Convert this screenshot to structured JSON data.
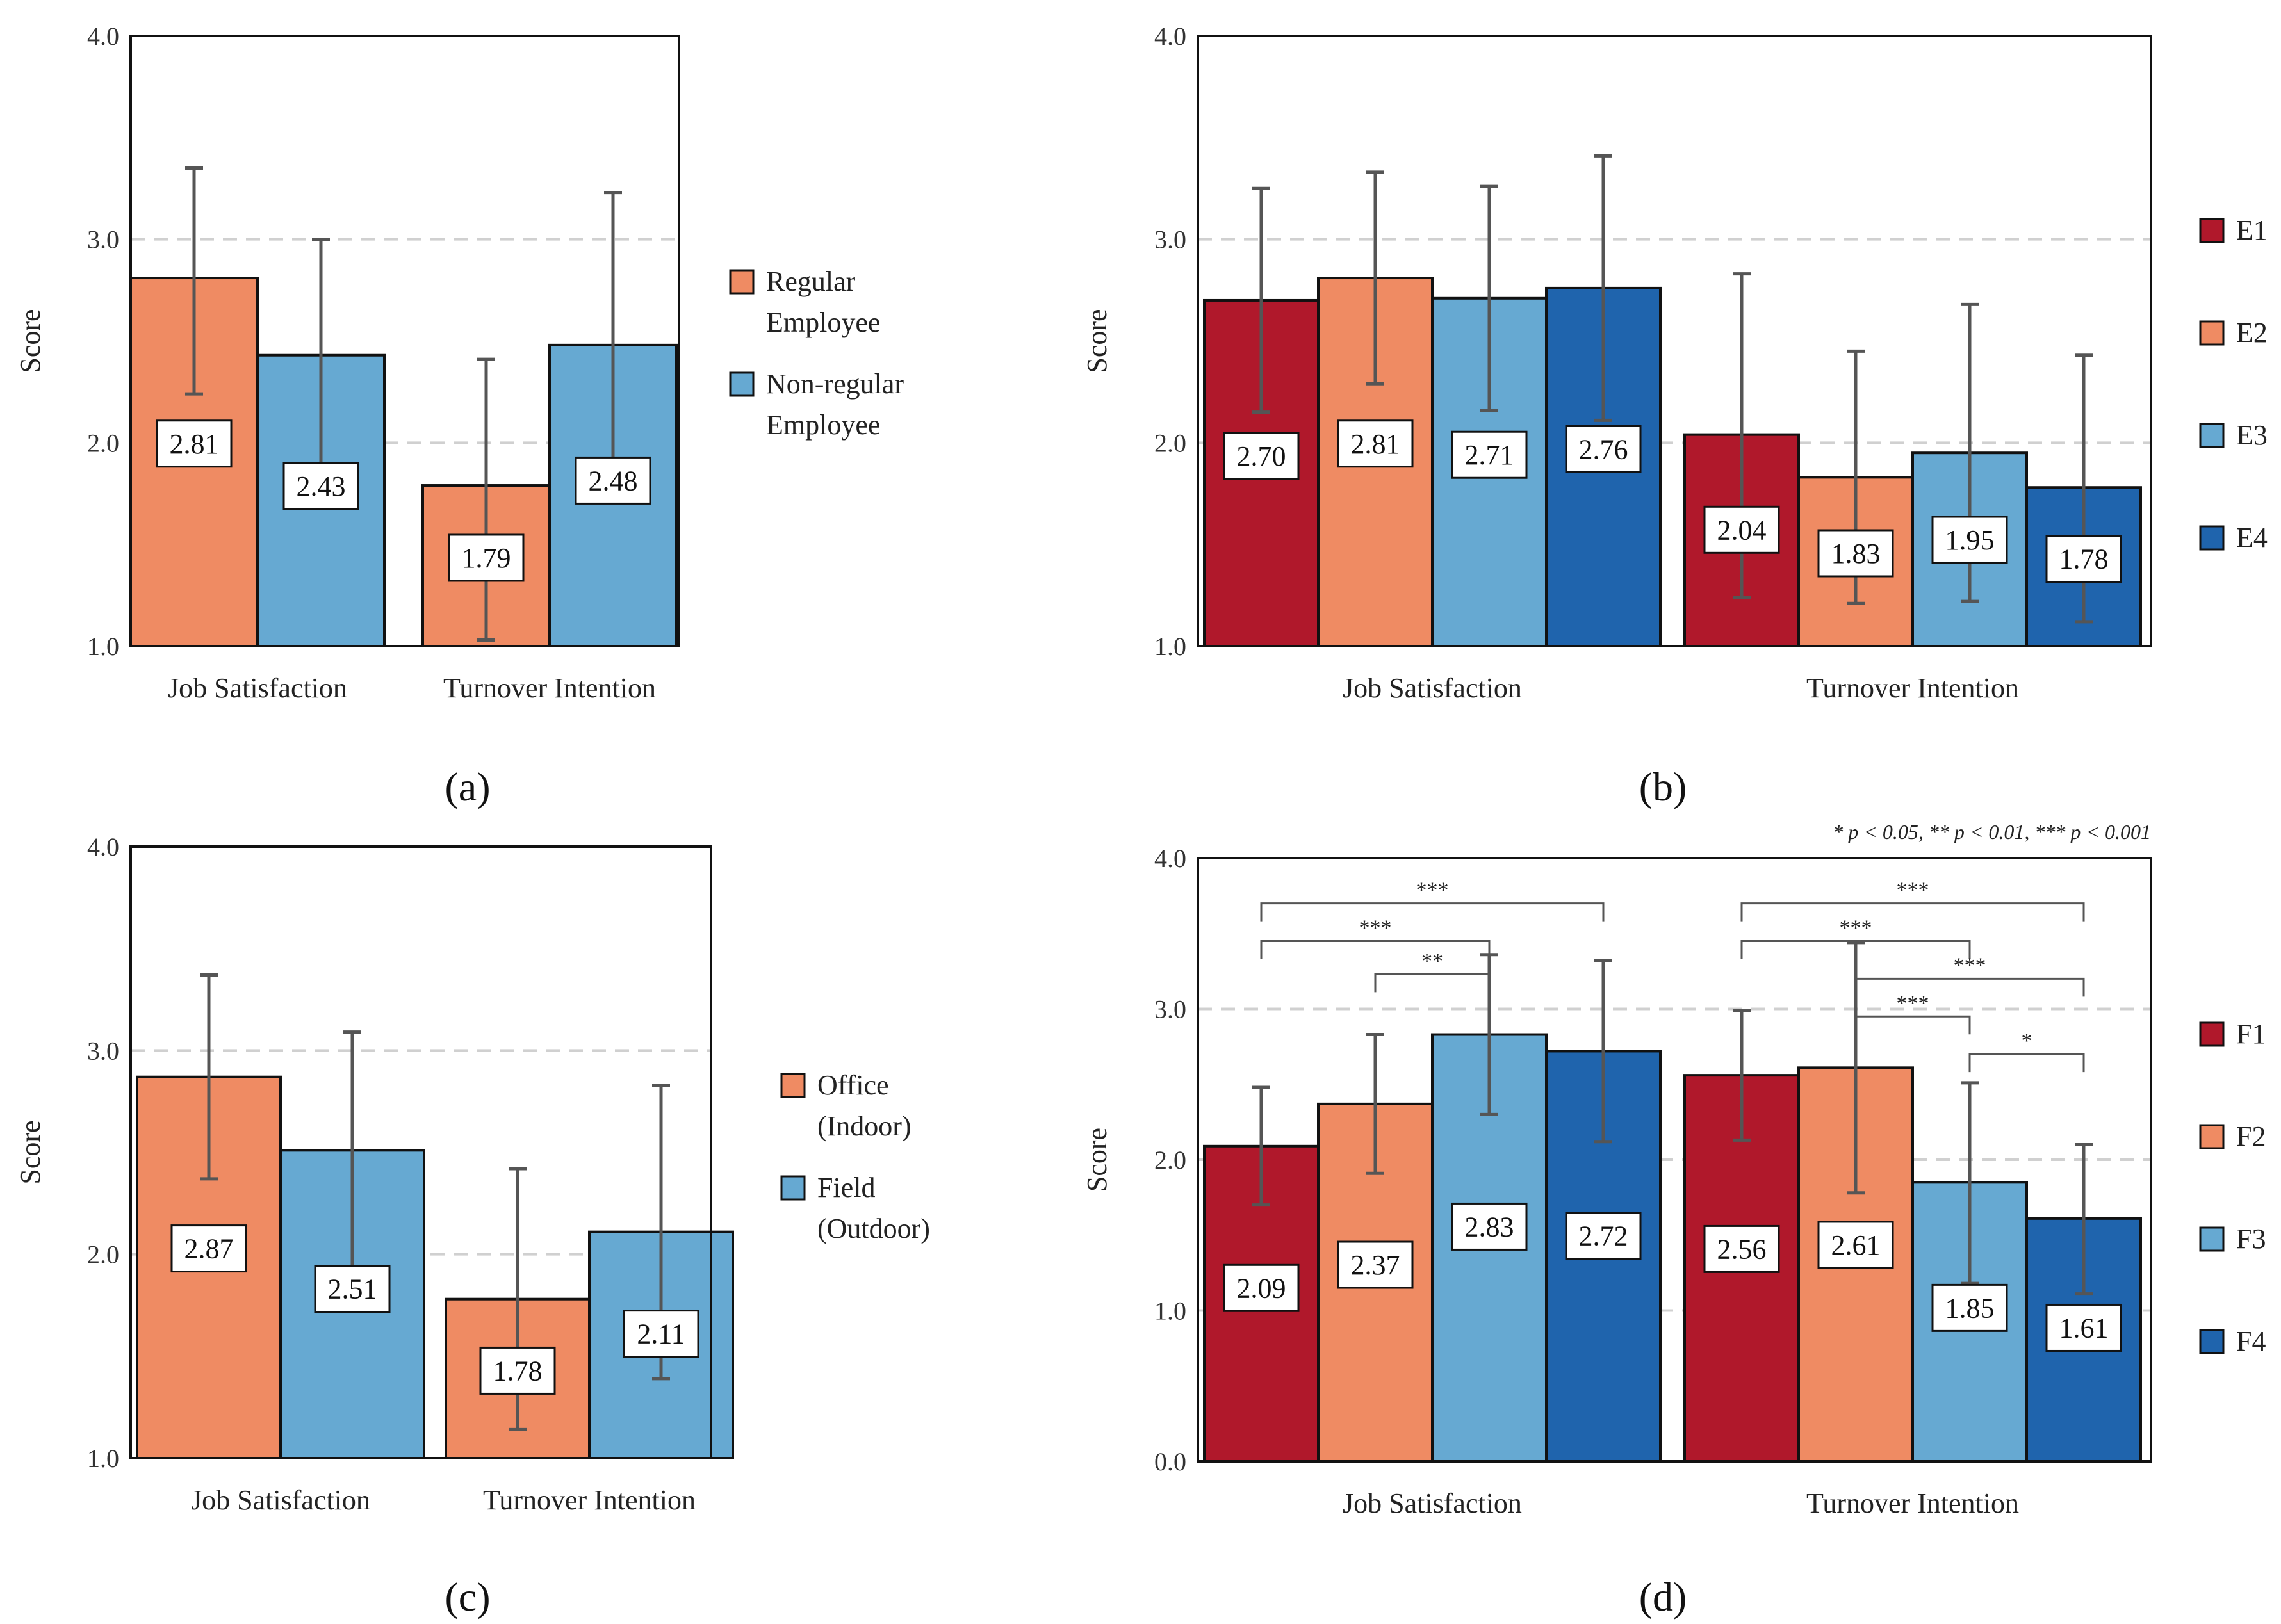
{
  "colors": {
    "red": "#B0182B",
    "orange": "#EF8B63",
    "lightblue": "#66A9D2",
    "darkblue": "#1F64AD",
    "grid": "#D0D0D0",
    "errorbar": "#555555"
  },
  "chart_data": [
    {
      "id": "a",
      "panel_label": "(a)",
      "type": "bar",
      "ylabel": "Score",
      "ylim": [
        1.0,
        4.0
      ],
      "yticks": [
        "1.0",
        "2.0",
        "3.0",
        "4.0"
      ],
      "ytick_values": [
        1.0,
        2.0,
        3.0,
        4.0
      ],
      "grid": true,
      "categories": [
        "Job Satisfaction",
        "Turnover Intention"
      ],
      "series": [
        {
          "name": "Regular Employee",
          "legend_lines": [
            "Regular",
            "Employee"
          ],
          "color": "#EF8B63",
          "values": [
            2.81,
            1.79
          ],
          "labels": [
            "2.81",
            "1.79"
          ],
          "err_low": [
            2.24,
            1.03
          ],
          "err_high": [
            3.35,
            2.41
          ]
        },
        {
          "name": "Non-regular Employee",
          "legend_lines": [
            "Non-regular",
            "Employee"
          ],
          "color": "#66A9D2",
          "values": [
            2.43,
            2.48
          ],
          "labels": [
            "2.43",
            "2.48"
          ],
          "err_low": [
            1.86,
            1.73
          ],
          "err_high": [
            3.0,
            3.23
          ]
        }
      ],
      "legend_position": "right",
      "significance_note": "",
      "brackets": []
    },
    {
      "id": "b",
      "panel_label": "(b)",
      "type": "bar",
      "ylabel": "Score",
      "ylim": [
        1.0,
        4.0
      ],
      "yticks": [
        "1.0",
        "2.0",
        "3.0",
        "4.0"
      ],
      "ytick_values": [
        1.0,
        2.0,
        3.0,
        4.0
      ],
      "grid": true,
      "categories": [
        "Job Satisfaction",
        "Turnover Intention"
      ],
      "series": [
        {
          "name": "E1",
          "legend_lines": [
            "E1"
          ],
          "color": "#B0182B",
          "values": [
            2.7,
            2.04
          ],
          "labels": [
            "2.70",
            "2.04"
          ],
          "err_low": [
            2.15,
            1.24
          ],
          "err_high": [
            3.25,
            2.83
          ]
        },
        {
          "name": "E2",
          "legend_lines": [
            "E2"
          ],
          "color": "#EF8B63",
          "values": [
            2.81,
            1.83
          ],
          "labels": [
            "2.81",
            "1.83"
          ],
          "err_low": [
            2.29,
            1.21
          ],
          "err_high": [
            3.33,
            2.45
          ]
        },
        {
          "name": "E3",
          "legend_lines": [
            "E3"
          ],
          "color": "#66A9D2",
          "values": [
            2.71,
            1.95
          ],
          "labels": [
            "2.71",
            "1.95"
          ],
          "err_low": [
            2.16,
            1.22
          ],
          "err_high": [
            3.26,
            2.68
          ]
        },
        {
          "name": "E4",
          "legend_lines": [
            "E4"
          ],
          "color": "#1F64AD",
          "values": [
            2.76,
            1.78
          ],
          "labels": [
            "2.76",
            "1.78"
          ],
          "err_low": [
            2.11,
            1.12
          ],
          "err_high": [
            3.41,
            2.43
          ]
        }
      ],
      "legend_position": "right",
      "significance_note": "",
      "brackets": []
    },
    {
      "id": "c",
      "panel_label": "(c)",
      "type": "bar",
      "ylabel": "Score",
      "ylim": [
        1.0,
        4.0
      ],
      "yticks": [
        "1.0",
        "2.0",
        "3.0",
        "4.0"
      ],
      "ytick_values": [
        1.0,
        2.0,
        3.0,
        4.0
      ],
      "grid": true,
      "categories": [
        "Job Satisfaction",
        "Turnover Intention"
      ],
      "series": [
        {
          "name": "Office (Indoor)",
          "legend_lines": [
            "Office",
            "(Indoor)"
          ],
          "color": "#EF8B63",
          "values": [
            2.87,
            1.78
          ],
          "labels": [
            "2.87",
            "1.78"
          ],
          "err_low": [
            2.37,
            1.14
          ],
          "err_high": [
            3.37,
            2.42
          ]
        },
        {
          "name": "Field (Outdoor)",
          "legend_lines": [
            "Field",
            "(Outdoor)"
          ],
          "color": "#66A9D2",
          "values": [
            2.51,
            2.11
          ],
          "labels": [
            "2.51",
            "2.11"
          ],
          "err_low": [
            1.92,
            1.39
          ],
          "err_high": [
            3.09,
            2.83
          ]
        }
      ],
      "legend_position": "right",
      "significance_note": "",
      "brackets": []
    },
    {
      "id": "d",
      "panel_label": "(d)",
      "type": "bar",
      "ylabel": "Score",
      "ylim": [
        0.0,
        4.0
      ],
      "yticks": [
        "0.0",
        "1.0",
        "2.0",
        "3.0",
        "4.0"
      ],
      "ytick_values": [
        0.0,
        1.0,
        2.0,
        3.0,
        4.0
      ],
      "grid": true,
      "categories": [
        "Job Satisfaction",
        "Turnover Intention"
      ],
      "series": [
        {
          "name": "F1",
          "legend_lines": [
            "F1"
          ],
          "color": "#B0182B",
          "values": [
            2.09,
            2.56
          ],
          "labels": [
            "2.09",
            "2.56"
          ],
          "err_low": [
            1.7,
            2.13
          ],
          "err_high": [
            2.48,
            2.99
          ]
        },
        {
          "name": "F2",
          "legend_lines": [
            "F2"
          ],
          "color": "#EF8B63",
          "values": [
            2.37,
            2.61
          ],
          "labels": [
            "2.37",
            "2.61"
          ],
          "err_low": [
            1.91,
            1.78
          ],
          "err_high": [
            2.83,
            3.44
          ]
        },
        {
          "name": "F3",
          "legend_lines": [
            "F3"
          ],
          "color": "#66A9D2",
          "values": [
            2.83,
            1.85
          ],
          "labels": [
            "2.83",
            "1.85"
          ],
          "err_low": [
            2.3,
            1.18
          ],
          "err_high": [
            3.36,
            2.51
          ]
        },
        {
          "name": "F4",
          "legend_lines": [
            "F4"
          ],
          "color": "#1F64AD",
          "values": [
            2.72,
            1.61
          ],
          "labels": [
            "2.72",
            "1.61"
          ],
          "err_low": [
            2.12,
            1.11
          ],
          "err_high": [
            3.32,
            2.1
          ]
        }
      ],
      "legend_position": "right",
      "significance_note": "* p < 0.05, ** p < 0.01, *** p < 0.001",
      "brackets": [
        {
          "category": 0,
          "from": 0,
          "to": 3,
          "level": 3.7,
          "label": "***"
        },
        {
          "category": 0,
          "from": 0,
          "to": 2,
          "level": 3.45,
          "label": "***"
        },
        {
          "category": 0,
          "from": 1,
          "to": 2,
          "level": 3.23,
          "label": "**"
        },
        {
          "category": 1,
          "from": 0,
          "to": 3,
          "level": 3.7,
          "label": "***"
        },
        {
          "category": 1,
          "from": 0,
          "to": 2,
          "level": 3.45,
          "label": "***"
        },
        {
          "category": 1,
          "from": 1,
          "to": 3,
          "level": 3.2,
          "label": "***"
        },
        {
          "category": 1,
          "from": 1,
          "to": 2,
          "level": 2.95,
          "label": "***"
        },
        {
          "category": 1,
          "from": 2,
          "to": 3,
          "level": 2.7,
          "label": "*"
        }
      ]
    }
  ]
}
